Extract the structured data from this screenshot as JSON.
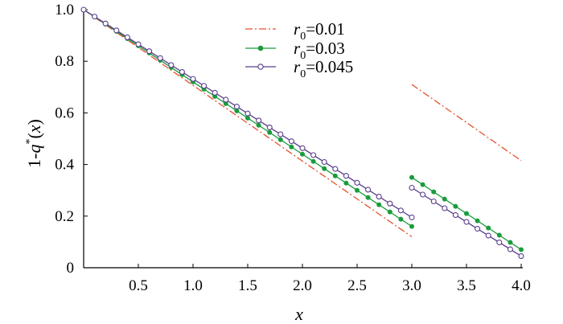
{
  "chart_data": {
    "type": "line",
    "xlabel": "x",
    "ylabel": {
      "prefix": "1-",
      "var": "q",
      "sup": "*",
      "suffix": "(x)"
    },
    "xlim": [
      0,
      4.0
    ],
    "ylim": [
      0,
      1.0
    ],
    "x_ticks": [
      0.5,
      1.0,
      1.5,
      2.0,
      2.5,
      3.0,
      3.5,
      4.0
    ],
    "x_tick_labels": [
      "0.5",
      "1.0",
      "1.5",
      "2.0",
      "2.5",
      "3.0",
      "3.5",
      "4.0"
    ],
    "y_ticks": [
      0,
      0.2,
      0.4,
      0.6,
      0.8,
      1.0
    ],
    "y_tick_labels": [
      "0",
      "0.2",
      "0.4",
      "0.6",
      "0.8",
      "1.0"
    ],
    "grid": false,
    "legend_position": "top-center",
    "series": [
      {
        "name": {
          "var": "r",
          "sub": "0",
          "rest": "=0.01"
        },
        "color": "#e3522f",
        "style": "dash-dot",
        "marker": "none",
        "segments": [
          {
            "x": [
              0,
              3.0
            ],
            "y": [
              1.0,
              0.12
            ]
          },
          {
            "x": [
              3.0,
              4.0
            ],
            "y": [
              0.71,
              0.415
            ]
          }
        ]
      },
      {
        "name": {
          "var": "r",
          "sub": "0",
          "rest": "=0.03"
        },
        "color": "#1a9c3c",
        "style": "solid",
        "marker": "filled-circle",
        "segments": [
          {
            "x": [
              0,
              3.0
            ],
            "y": [
              1.0,
              0.16
            ]
          },
          {
            "x": [
              3.0,
              4.0
            ],
            "y": [
              0.35,
              0.07
            ]
          }
        ]
      },
      {
        "name": {
          "var": "r",
          "sub": "0",
          "rest": "=0.045"
        },
        "color": "#5a3e8c",
        "style": "solid",
        "marker": "open-circle",
        "segments": [
          {
            "x": [
              0,
              3.0
            ],
            "y": [
              1.0,
              0.195
            ]
          },
          {
            "x": [
              3.0,
              4.0
            ],
            "y": [
              0.31,
              0.045
            ]
          }
        ]
      }
    ]
  }
}
